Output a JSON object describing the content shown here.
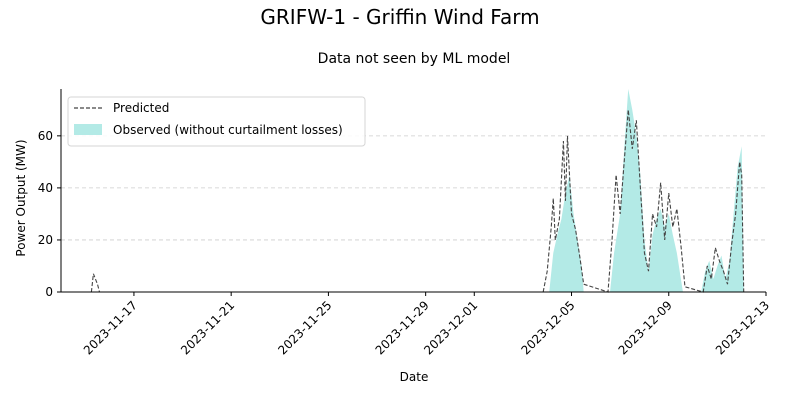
{
  "chart_data": {
    "type": "area",
    "title": "GRIFW-1 - Griffin Wind Farm",
    "subtitle": "Data not seen by ML model",
    "xlabel": "Date",
    "ylabel": "Power Output (MW)",
    "x_axis": "date",
    "xlim": [
      "2023-11-14T00:00",
      "2023-12-13T00:00"
    ],
    "ylim": [
      0,
      78
    ],
    "x_ticks": [
      "2023-11-17",
      "2023-11-21",
      "2023-11-25",
      "2023-11-29",
      "2023-12-01",
      "2023-12-05",
      "2023-12-09",
      "2023-12-13"
    ],
    "y_ticks": [
      0,
      20,
      40,
      60
    ],
    "grid": "y-dashed",
    "legend_position": "top-left",
    "colors": {
      "predicted": "#444444",
      "observed": "#b3eae6"
    },
    "series": [
      {
        "name": "Predicted",
        "style": "dashed-line",
        "points": [
          [
            "2023-11-15T06:00",
            0
          ],
          [
            "2023-11-15T08:00",
            7
          ],
          [
            "2023-11-15T10:00",
            5
          ],
          [
            "2023-11-15T12:00",
            3
          ],
          [
            "2023-11-15T14:00",
            0
          ],
          [
            "2023-12-03T20:00",
            0
          ],
          [
            "2023-12-04T00:00",
            8
          ],
          [
            "2023-12-04T04:00",
            25
          ],
          [
            "2023-12-04T06:00",
            36
          ],
          [
            "2023-12-04T08:00",
            20
          ],
          [
            "2023-12-04T12:00",
            28
          ],
          [
            "2023-12-04T16:00",
            58
          ],
          [
            "2023-12-04T18:00",
            35
          ],
          [
            "2023-12-04T20:00",
            60
          ],
          [
            "2023-12-05T00:00",
            30
          ],
          [
            "2023-12-05T04:00",
            24
          ],
          [
            "2023-12-05T08:00",
            14
          ],
          [
            "2023-12-05T12:00",
            3
          ],
          [
            "2023-12-06T12:00",
            0
          ],
          [
            "2023-12-06T16:00",
            20
          ],
          [
            "2023-12-06T20:00",
            45
          ],
          [
            "2023-12-07T00:00",
            30
          ],
          [
            "2023-12-07T04:00",
            50
          ],
          [
            "2023-12-07T08:00",
            70
          ],
          [
            "2023-12-07T12:00",
            55
          ],
          [
            "2023-12-07T16:00",
            66
          ],
          [
            "2023-12-07T20:00",
            40
          ],
          [
            "2023-12-08T00:00",
            15
          ],
          [
            "2023-12-08T04:00",
            8
          ],
          [
            "2023-12-08T08:00",
            30
          ],
          [
            "2023-12-08T12:00",
            25
          ],
          [
            "2023-12-08T16:00",
            42
          ],
          [
            "2023-12-08T20:00",
            20
          ],
          [
            "2023-12-09T00:00",
            38
          ],
          [
            "2023-12-09T04:00",
            25
          ],
          [
            "2023-12-09T08:00",
            32
          ],
          [
            "2023-12-09T12:00",
            18
          ],
          [
            "2023-12-09T16:00",
            2
          ],
          [
            "2023-12-10T10:00",
            0
          ],
          [
            "2023-12-10T14:00",
            10
          ],
          [
            "2023-12-10T18:00",
            5
          ],
          [
            "2023-12-10T22:00",
            17
          ],
          [
            "2023-12-11T02:00",
            12
          ],
          [
            "2023-12-11T06:00",
            8
          ],
          [
            "2023-12-11T10:00",
            3
          ],
          [
            "2023-12-11T14:00",
            18
          ],
          [
            "2023-12-11T18:00",
            30
          ],
          [
            "2023-12-11T22:00",
            50
          ],
          [
            "2023-12-12T00:00",
            45
          ],
          [
            "2023-12-12T02:00",
            0
          ]
        ]
      },
      {
        "name": "Observed (without curtailment losses)",
        "style": "filled-area",
        "points": [
          [
            "2023-12-04T02:00",
            0
          ],
          [
            "2023-12-04T06:00",
            15
          ],
          [
            "2023-12-04T10:00",
            22
          ],
          [
            "2023-12-04T14:00",
            28
          ],
          [
            "2023-12-04T18:00",
            38
          ],
          [
            "2023-12-04T22:00",
            45
          ],
          [
            "2023-12-05T02:00",
            30
          ],
          [
            "2023-12-05T06:00",
            20
          ],
          [
            "2023-12-05T10:00",
            10
          ],
          [
            "2023-12-05T12:00",
            0
          ],
          [
            "2023-12-06T14:00",
            0
          ],
          [
            "2023-12-06T18:00",
            15
          ],
          [
            "2023-12-07T00:00",
            30
          ],
          [
            "2023-12-07T04:00",
            55
          ],
          [
            "2023-12-07T08:00",
            78
          ],
          [
            "2023-12-07T12:00",
            70
          ],
          [
            "2023-12-07T16:00",
            60
          ],
          [
            "2023-12-07T20:00",
            45
          ],
          [
            "2023-12-08T00:00",
            20
          ],
          [
            "2023-12-08T04:00",
            8
          ],
          [
            "2023-12-08T08:00",
            22
          ],
          [
            "2023-12-08T12:00",
            28
          ],
          [
            "2023-12-08T16:00",
            32
          ],
          [
            "2023-12-08T20:00",
            25
          ],
          [
            "2023-12-09T00:00",
            30
          ],
          [
            "2023-12-09T04:00",
            22
          ],
          [
            "2023-12-09T08:00",
            15
          ],
          [
            "2023-12-09T12:00",
            5
          ],
          [
            "2023-12-09T14:00",
            0
          ],
          [
            "2023-12-10T08:00",
            0
          ],
          [
            "2023-12-10T12:00",
            8
          ],
          [
            "2023-12-10T16:00",
            12
          ],
          [
            "2023-12-10T20:00",
            5
          ],
          [
            "2023-12-11T00:00",
            10
          ],
          [
            "2023-12-11T04:00",
            14
          ],
          [
            "2023-12-11T08:00",
            5
          ],
          [
            "2023-12-11T12:00",
            12
          ],
          [
            "2023-12-11T16:00",
            30
          ],
          [
            "2023-12-11T20:00",
            48
          ],
          [
            "2023-12-12T00:00",
            56
          ],
          [
            "2023-12-12T02:00",
            0
          ]
        ]
      }
    ]
  }
}
